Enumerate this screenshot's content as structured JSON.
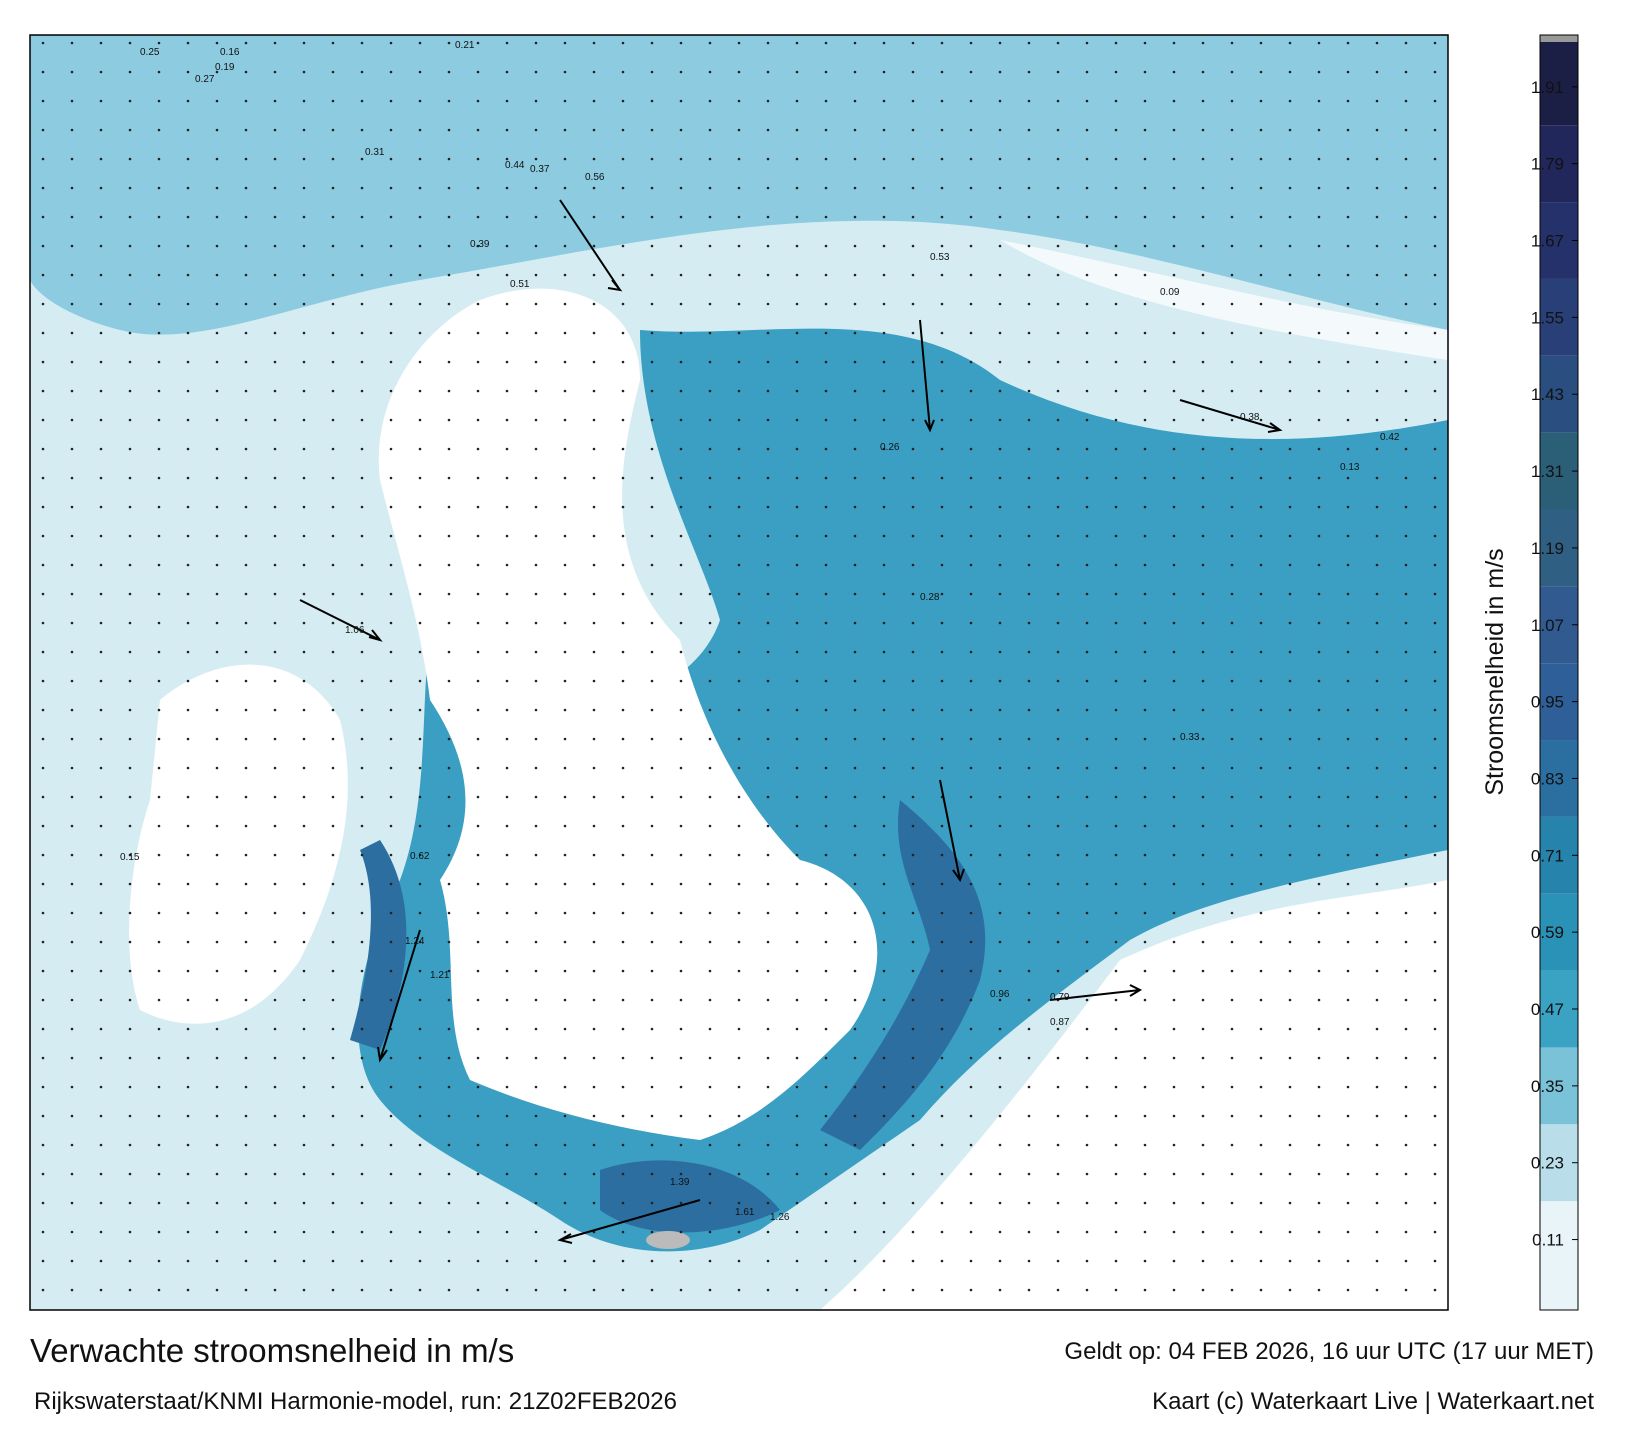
{
  "title": "Verwachte stroomsnelheid in m/s",
  "subtitle": "Rijkswaterstaat/KNMI Harmonie-model, run: 21Z02FEB2026",
  "valid_time": "Geldt op: 04 FEB 2026, 16 uur UTC (17 uur MET)",
  "credit": "Kaart (c) Waterkaart Live | Waterkaart.net",
  "map_labels": [
    "0.25",
    "0.16",
    "0.21",
    "0.19",
    "0.27",
    "0.31",
    "0.44",
    "0.51",
    "0.37",
    "0.56",
    "0.39",
    "0.53",
    "1.06",
    "0.62",
    "1.24",
    "1.21",
    "0.42",
    "1.39",
    "1.61",
    "1.26",
    "0.96",
    "0.79",
    "0.87",
    "0.38",
    "0.26",
    "0.09",
    "0.13",
    "0.33",
    "0.28",
    "0.15"
  ],
  "colorbar": {
    "label": "Stroomsnelheid in m/s",
    "ylim": [
      0,
      1.98
    ],
    "yticks": [
      0.11,
      0.23,
      0.35,
      0.47,
      0.59,
      0.71,
      0.83,
      0.95,
      1.07,
      1.19,
      1.31,
      1.43,
      1.55,
      1.67,
      1.79,
      1.91
    ],
    "colors": [
      "#e9f4f8",
      "#b9deea",
      "#79c2d8",
      "#3aa3c4",
      "#2b92b7",
      "#2683ab",
      "#2a6fa0",
      "#2f5f98",
      "#305a90",
      "#2f5f83",
      "#2b5f78",
      "#2b4e80",
      "#293f78",
      "#25316a",
      "#21275a",
      "#1b1f45"
    ]
  }
}
